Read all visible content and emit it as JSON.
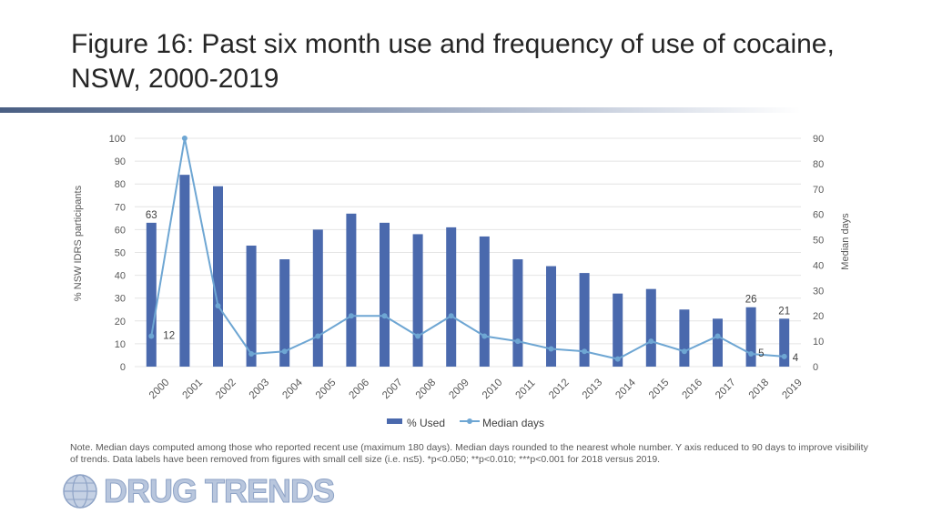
{
  "title": "Figure 16: Past six month use and frequency of use of cocaine, NSW, 2000-2019",
  "note": "Note. Median days computed among those who reported recent use (maximum 180 days). Median days rounded to the nearest whole number. Y axis reduced to 90 days to improve visibility of trends. Data labels have been removed from figures with small cell size (i.e. n≤5). *p<0.050; **p<0.010; ***p<0.001 for 2018 versus 2019.",
  "logo_text": "DRUG TRENDS",
  "colors": {
    "bar": "#4a69ad",
    "line": "#6ea6d3",
    "axis_text": "#595959",
    "grid": "#e4e4e4"
  },
  "chart_data": {
    "type": "bar",
    "categories": [
      "2000",
      "2001",
      "2002",
      "2003",
      "2004",
      "2005",
      "2006",
      "2007",
      "2008",
      "2009",
      "2010",
      "2011",
      "2012",
      "2013",
      "2014",
      "2015",
      "2016",
      "2017",
      "2018",
      "2019"
    ],
    "series": [
      {
        "name": "% Used",
        "type": "bar",
        "axis": "left",
        "values": [
          63,
          84,
          79,
          53,
          47,
          60,
          67,
          63,
          58,
          61,
          57,
          47,
          44,
          41,
          32,
          34,
          25,
          21,
          26,
          21
        ]
      },
      {
        "name": "Median days",
        "type": "line",
        "axis": "right",
        "values": [
          12,
          90,
          24,
          5,
          6,
          12,
          20,
          20,
          12,
          20,
          12,
          10,
          7,
          6,
          3,
          10,
          6,
          12,
          5,
          4
        ]
      }
    ],
    "data_labels": [
      {
        "series": "% Used",
        "category": "2000",
        "text": "63"
      },
      {
        "series": "Median days",
        "category": "2000",
        "text": "12"
      },
      {
        "series": "% Used",
        "category": "2018",
        "text": "26"
      },
      {
        "series": "% Used",
        "category": "2019",
        "text": "21"
      },
      {
        "series": "Median days",
        "category": "2018",
        "text": "5"
      },
      {
        "series": "Median days",
        "category": "2019",
        "text": "4"
      }
    ],
    "ylabel": "% NSW IDRS participants",
    "y2label": "Median days",
    "ylim": [
      0,
      100
    ],
    "y2lim": [
      0,
      90
    ],
    "yticks": [
      0,
      10,
      20,
      30,
      40,
      50,
      60,
      70,
      80,
      90,
      100
    ],
    "y2ticks": [
      0,
      10,
      20,
      30,
      40,
      50,
      60,
      70,
      80,
      90
    ],
    "grid": true,
    "legend": "bottom-center"
  }
}
